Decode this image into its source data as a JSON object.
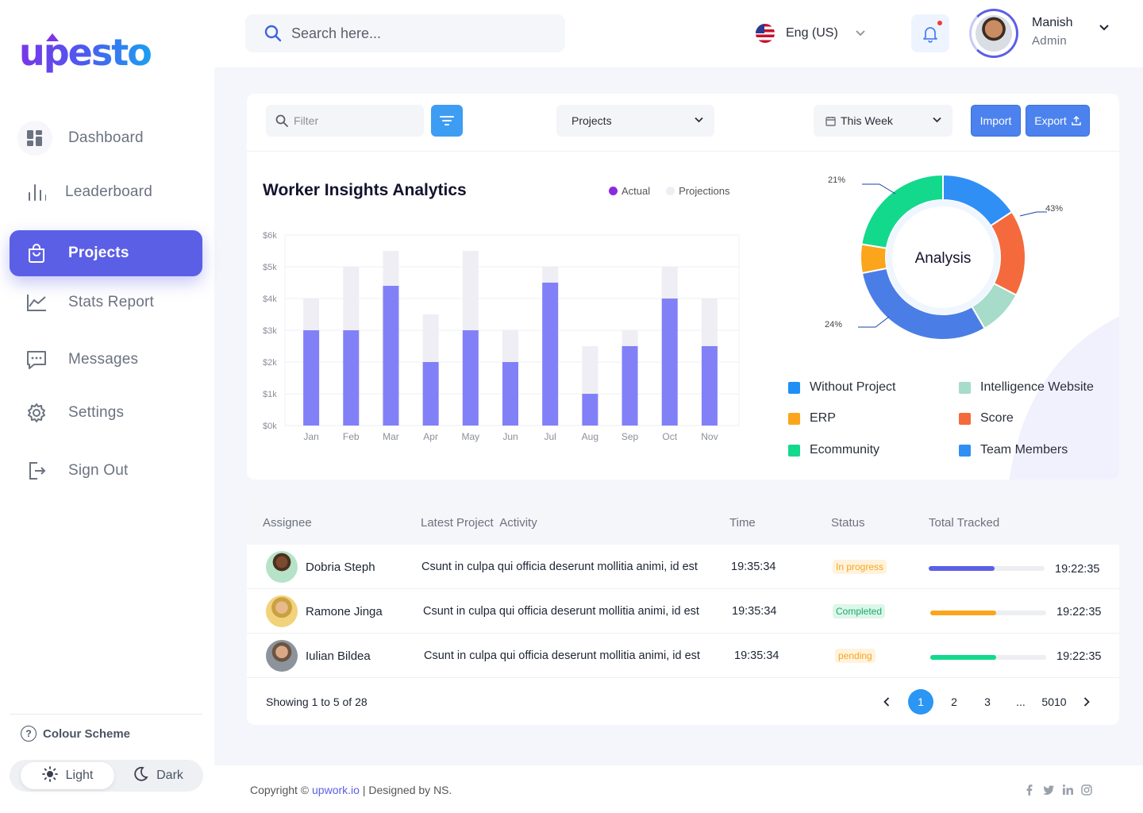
{
  "brand": {
    "logo_text": "upesto"
  },
  "sidebar": {
    "items": [
      {
        "label": "Dashboard",
        "icon": "dashboard-icon"
      },
      {
        "label": "Leaderboard",
        "icon": "bars-icon"
      },
      {
        "label": "Projects",
        "icon": "bag-icon",
        "active": true
      },
      {
        "label": "Stats Report",
        "icon": "line-chart-icon"
      },
      {
        "label": "Messages",
        "icon": "chat-icon"
      },
      {
        "label": "Settings",
        "icon": "gear-icon"
      },
      {
        "label": "Sign Out",
        "icon": "sign-out-icon"
      }
    ],
    "colour_scheme_label": "Colour Scheme",
    "theme_light": "Light",
    "theme_dark": "Dark"
  },
  "header": {
    "search_placeholder": "Search here...",
    "language": "Eng (US)",
    "user_name": "Manish",
    "user_role": "Admin"
  },
  "toolbar": {
    "filter_placeholder": "Filter",
    "project_select": "Projects",
    "period_select": "This Week",
    "import_label": "Import",
    "export_label": "Export"
  },
  "chart_data": [
    {
      "type": "bar",
      "title": "Worker Insights Analytics",
      "categories": [
        "Jan",
        "Feb",
        "Mar",
        "Apr",
        "May",
        "Jun",
        "Jul",
        "Aug",
        "Sep",
        "Oct",
        "Nov"
      ],
      "series": [
        {
          "name": "Actual",
          "values": [
            3000,
            3000,
            4400,
            2000,
            3000,
            2000,
            4500,
            1000,
            2500,
            4000,
            2500
          ],
          "color": "#8280f7"
        },
        {
          "name": "Projections",
          "values": [
            4000,
            5000,
            5500,
            3500,
            5500,
            3000,
            5000,
            2500,
            3000,
            5000,
            4000
          ],
          "color": "#eeeef4"
        }
      ],
      "y_ticks": [
        "$0k",
        "$1k",
        "$2k",
        "$3k",
        "$4k",
        "$5k",
        "$6k"
      ],
      "ylim": [
        0,
        6000
      ],
      "legend_dot_actual": "#8a2be2",
      "grid": true
    },
    {
      "type": "pie",
      "center_label": "Analysis",
      "slices": [
        {
          "name": "Team Members",
          "value": 14,
          "color": "#2f8ff5"
        },
        {
          "name": "Score",
          "value": 15,
          "color": "#f46a3c"
        },
        {
          "name": "Intelligence Website",
          "value": 8,
          "color": "#a6dcc9"
        },
        {
          "name": "Without Project",
          "value": 27,
          "color": "#4a7ee6"
        },
        {
          "name": "ERP",
          "value": 5,
          "color": "#fba51c"
        },
        {
          "name": "Ecommunity",
          "value": 20,
          "color": "#12d98b"
        }
      ],
      "annotations": [
        "21%",
        "43%",
        "24%"
      ]
    }
  ],
  "donut_legend": [
    {
      "label": "Without Project",
      "color": "#1f8ff5"
    },
    {
      "label": "Intelligence Website",
      "color": "#a6dcc9"
    },
    {
      "label": "ERP",
      "color": "#fba51c"
    },
    {
      "label": "Score",
      "color": "#f46a3c"
    },
    {
      "label": "Ecommunity",
      "color": "#12d98b"
    },
    {
      "label": "Team Members",
      "color": "#2f8ff5"
    }
  ],
  "table": {
    "headers": [
      "Assignee",
      "Latest Project  Activity",
      "Time",
      "Status",
      "Total Tracked"
    ],
    "rows": [
      {
        "name": "Dobria Steph",
        "activity": "Csunt in culpa qui officia deserunt mollitia animi, id est",
        "time": "19:35:34",
        "status": "In progress",
        "status_bg": "#fff3dc",
        "status_fg": "#f5a524",
        "progress": 0.57,
        "progress_color": "#5b5fe6",
        "tracked": "19:22:35"
      },
      {
        "name": "Ramone Jinga",
        "activity": "Csunt in culpa qui officia deserunt mollitia animi, id est",
        "time": "19:35:34",
        "status": "Completed",
        "status_bg": "#dcf7ea",
        "status_fg": "#1aa86a",
        "progress": 0.57,
        "progress_color": "#fba51c",
        "tracked": "19:22:35"
      },
      {
        "name": "Iulian Bildea",
        "activity": "Csunt in culpa qui officia deserunt mollitia animi, id est",
        "time": "19:35:34",
        "status": "pending",
        "status_bg": "#fff3dc",
        "status_fg": "#f5a524",
        "progress": 0.57,
        "progress_color": "#12d98b",
        "tracked": "19:22:35"
      }
    ],
    "showing": "Showing 1 to 5 of 28",
    "pages": [
      "1",
      "2",
      "3",
      "...",
      "5010"
    ],
    "current_page": "1"
  },
  "footer": {
    "copyright_prefix": "Copyright ©",
    "link_text": "upwork.io",
    "suffix": "| Designed by NS."
  }
}
